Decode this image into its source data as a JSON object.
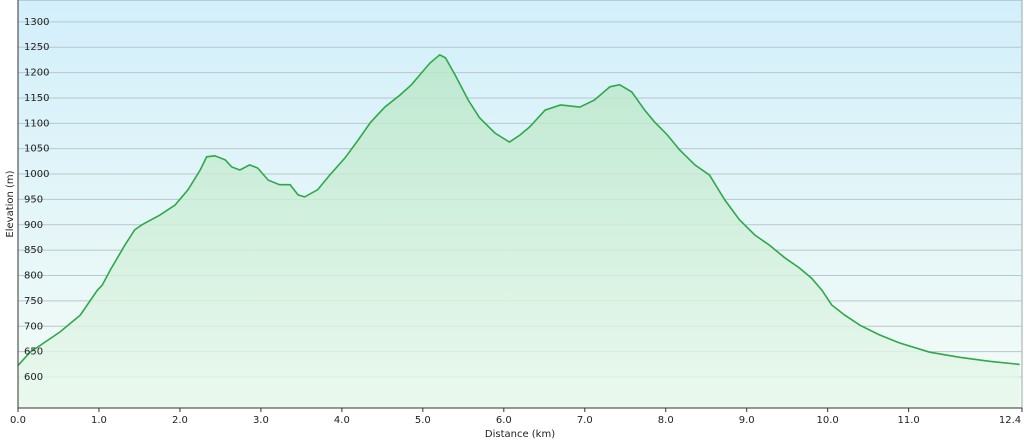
{
  "chart_data": {
    "type": "area",
    "x_label": "Distance  (km)",
    "y_label": "Elevation (m)",
    "xlim": [
      0,
      12.4
    ],
    "ylim": [
      539,
      1343
    ],
    "xticks": [
      {
        "value": 0,
        "label": "0.0"
      },
      {
        "value": 1,
        "label": "1.0"
      },
      {
        "value": 2,
        "label": "2.0"
      },
      {
        "value": 3,
        "label": "3.0"
      },
      {
        "value": 4,
        "label": "4.0"
      },
      {
        "value": 5,
        "label": "5.0"
      },
      {
        "value": 6,
        "label": "6.0"
      },
      {
        "value": 7,
        "label": "7.0"
      },
      {
        "value": 8,
        "label": "8.0"
      },
      {
        "value": 9,
        "label": "9.0"
      },
      {
        "value": 10,
        "label": "10.0"
      },
      {
        "value": 11,
        "label": "11.0"
      },
      12.4
    ],
    "yticks": [
      600,
      650,
      700,
      750,
      800,
      850,
      900,
      950,
      1000,
      1050,
      1100,
      1150,
      1200,
      1250,
      1300
    ],
    "grid": true,
    "x": [
      0,
      0.15,
      0.52,
      0.77,
      0.98,
      1.04,
      1.14,
      1.32,
      1.44,
      1.53,
      1.75,
      1.94,
      2.1,
      2.25,
      2.33,
      2.43,
      2.56,
      2.64,
      2.74,
      2.86,
      2.96,
      3.09,
      3.23,
      3.36,
      3.46,
      3.54,
      3.7,
      3.85,
      4.04,
      4.2,
      4.35,
      4.53,
      4.72,
      4.86,
      4.96,
      5.09,
      5.21,
      5.28,
      5.4,
      5.56,
      5.7,
      5.89,
      6.07,
      6.2,
      6.32,
      6.51,
      6.7,
      6.94,
      7.12,
      7.31,
      7.43,
      7.58,
      7.74,
      7.86,
      8.02,
      8.17,
      8.36,
      8.54,
      8.73,
      8.91,
      9.1,
      9.28,
      9.47,
      9.65,
      9.8,
      9.93,
      10.05,
      10.21,
      10.4,
      10.64,
      10.89,
      11.26,
      11.63,
      12.0,
      12.37
    ],
    "series": [
      {
        "color": "#2ea84a",
        "values": [
          623,
          649,
          689,
          722,
          771,
          781,
          811,
          860,
          890,
          900,
          919,
          939,
          969,
          1008,
          1034,
          1036,
          1028,
          1014,
          1008,
          1018,
          1012,
          988,
          979,
          979,
          959,
          955,
          969,
          998,
          1032,
          1067,
          1101,
          1132,
          1156,
          1176,
          1195,
          1219,
          1235,
          1229,
          1195,
          1146,
          1111,
          1081,
          1063,
          1077,
          1093,
          1126,
          1136,
          1132,
          1146,
          1172,
          1176,
          1162,
          1126,
          1103,
          1077,
          1048,
          1018,
          998,
          949,
          910,
          880,
          860,
          835,
          815,
          795,
          771,
          742,
          722,
          702,
          683,
          667,
          649,
          639,
          631,
          625
        ]
      }
    ]
  }
}
